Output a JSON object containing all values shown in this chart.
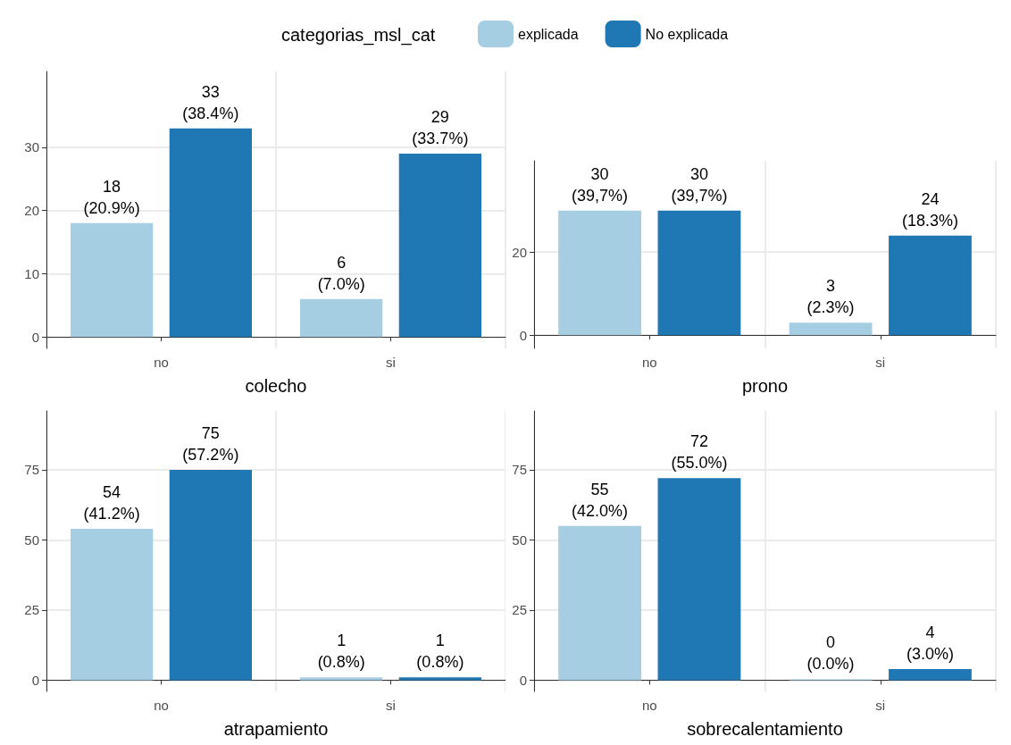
{
  "chart_data": [
    {
      "type": "bar",
      "xlabel": "colecho",
      "legend_title": "categorias_msl_cat",
      "legend": "top",
      "grid": true,
      "categories": [
        "no",
        "si"
      ],
      "ylim": [
        -1.8,
        42
      ],
      "yticks": [
        0,
        10,
        20,
        30
      ],
      "series": [
        {
          "name": "explicada",
          "color": "#a6cee3",
          "values": [
            18,
            6
          ],
          "value_labels": [
            "18\n(20.9%)",
            "6\n(7.0%)"
          ]
        },
        {
          "name": "No explicada",
          "color": "#1f78b4",
          "values": [
            33,
            29
          ],
          "value_labels": [
            "33\n(38.4%)",
            "29\n(33.7%)"
          ]
        }
      ]
    },
    {
      "type": "bar",
      "xlabel": "prono",
      "grid": true,
      "categories": [
        "no",
        "si"
      ],
      "ylim": [
        -3.2,
        42
      ],
      "yticks": [
        0,
        20
      ],
      "series": [
        {
          "color": "#a6cee3",
          "values": [
            30,
            3
          ],
          "value_labels": [
            "30\n(39,7%)",
            "3\n(2.3%)"
          ]
        },
        {
          "color": "#1f78b4",
          "values": [
            30,
            24
          ],
          "value_labels": [
            "30\n(39,7%)",
            "24\n(18.3%)"
          ]
        }
      ]
    },
    {
      "type": "bar",
      "xlabel": "atrapamiento",
      "grid": true,
      "categories": [
        "no",
        "si"
      ],
      "ylim": [
        -4,
        96
      ],
      "yticks": [
        0,
        25,
        50,
        75
      ],
      "series": [
        {
          "color": "#a6cee3",
          "values": [
            54,
            1
          ],
          "value_labels": [
            "54\n(41.2%)",
            "1\n(0.8%)"
          ]
        },
        {
          "color": "#1f78b4",
          "values": [
            75,
            1
          ],
          "value_labels": [
            "75\n(57.2%)",
            "1\n(0.8%)"
          ]
        }
      ]
    },
    {
      "type": "bar",
      "xlabel": "sobrecalentamiento",
      "grid": true,
      "categories": [
        "no",
        "si"
      ],
      "ylim": [
        -4,
        96
      ],
      "yticks": [
        0,
        25,
        50,
        75
      ],
      "series": [
        {
          "color": "#a6cee3",
          "values": [
            55,
            0
          ],
          "value_labels": [
            "55\n(42.0%)",
            "0\n(0.0%)"
          ]
        },
        {
          "color": "#1f78b4",
          "values": [
            72,
            4
          ],
          "value_labels": [
            "72\n(55.0%)",
            "4\n(3.0%)"
          ]
        }
      ]
    }
  ]
}
